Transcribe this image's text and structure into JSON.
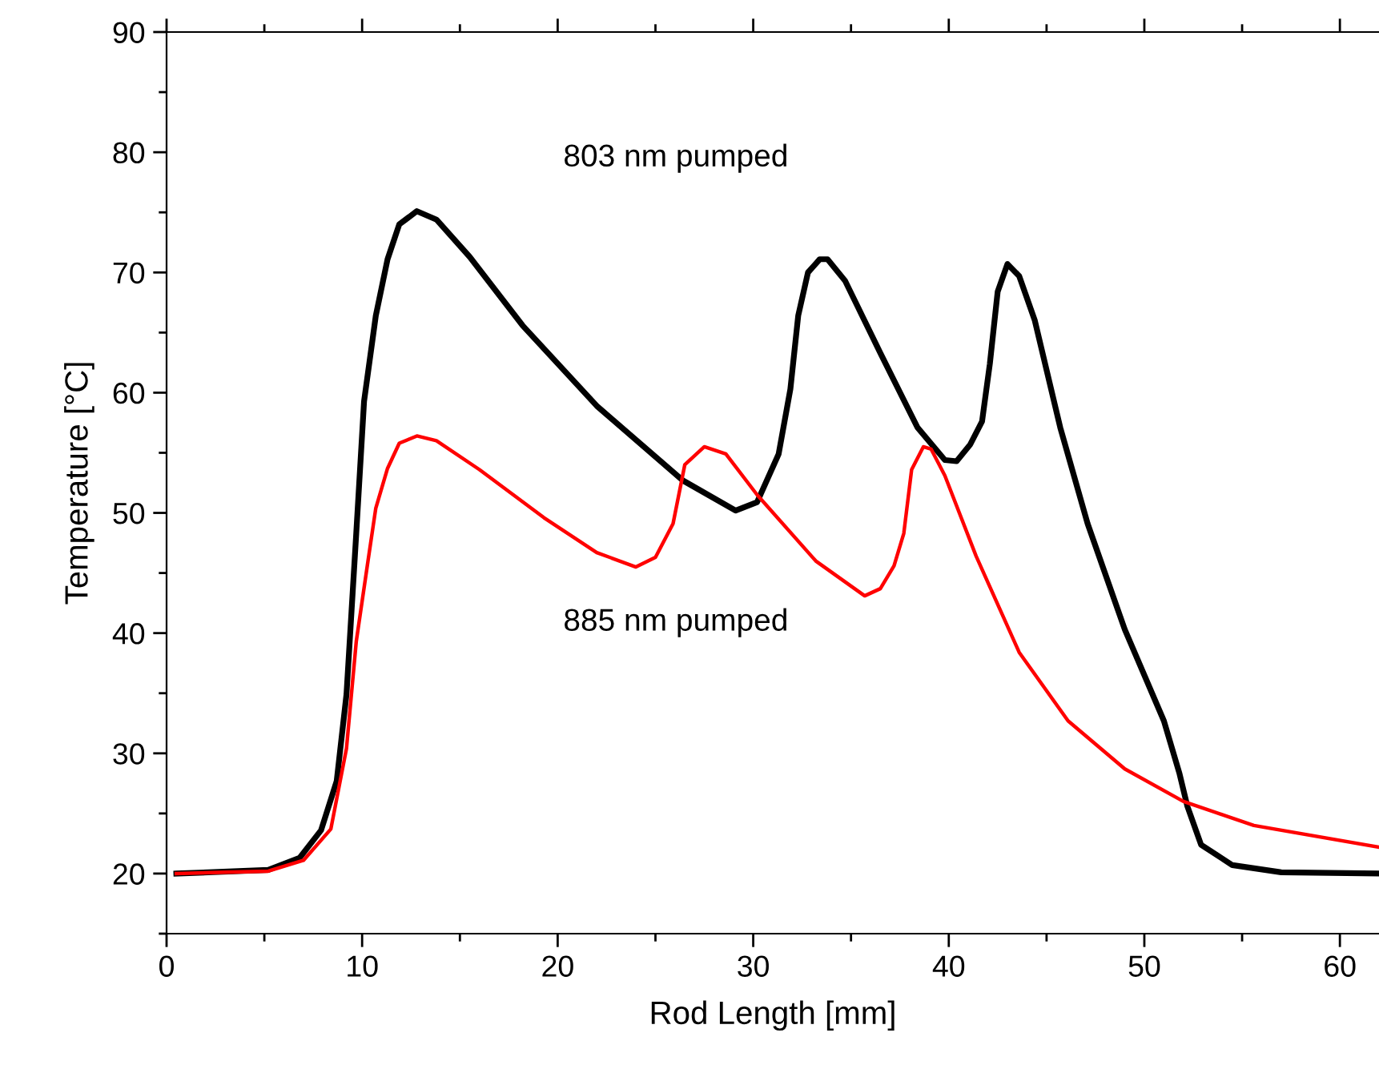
{
  "chart_data": {
    "type": "line",
    "xlabel": "Rod Length [mm]",
    "ylabel": "Temperature [°C]",
    "xlim": [
      0,
      62
    ],
    "ylim": [
      15,
      90
    ],
    "xticks": [
      0,
      10,
      20,
      30,
      40,
      50,
      60
    ],
    "yticks": [
      20,
      30,
      40,
      50,
      60,
      70,
      80,
      90
    ],
    "grid": false,
    "legend": false,
    "series": [
      {
        "name": "803 nm pumped",
        "color": "#000000",
        "x": [
          0.5,
          5.2,
          6.8,
          7.9,
          8.7,
          9.2,
          9.7,
          10.1,
          10.7,
          11.3,
          11.9,
          12.8,
          13.8,
          15.5,
          18.2,
          22.0,
          26.4,
          29.1,
          30.2,
          31.3,
          31.9,
          32.3,
          32.8,
          33.4,
          33.8,
          34.7,
          36.5,
          38.4,
          39.8,
          40.4,
          41.1,
          41.7,
          42.1,
          42.5,
          43.0,
          43.6,
          44.4,
          45.7,
          47.1,
          49.0,
          51.0,
          51.8,
          52.2,
          52.9,
          54.5,
          57.0,
          62.0
        ],
        "values": [
          20,
          20.3,
          21.3,
          23.6,
          27.7,
          34.9,
          48.3,
          59.3,
          66.4,
          71.1,
          74,
          75.1,
          74.4,
          71.3,
          65.6,
          58.9,
          52.7,
          50.2,
          50.9,
          54.9,
          60.3,
          66.4,
          70,
          71.1,
          71.1,
          69.3,
          63.3,
          57.1,
          54.4,
          54.3,
          55.7,
          57.6,
          62.4,
          68.4,
          70.7,
          69.7,
          66,
          57.1,
          49.1,
          40.3,
          32.7,
          28.3,
          25.6,
          22.4,
          20.7,
          20.1,
          20
        ]
      },
      {
        "name": "885 nm pumped",
        "color": "#ff0000",
        "x": [
          0.5,
          5.2,
          7.0,
          8.4,
          9.2,
          9.7,
          10.3,
          10.7,
          11.3,
          11.9,
          12.8,
          13.8,
          16.0,
          19.3,
          22.0,
          24.0,
          25.0,
          25.9,
          26.5,
          27.5,
          28.6,
          30.2,
          33.2,
          35.7,
          36.5,
          37.2,
          37.7,
          38.1,
          38.7,
          39.1,
          39.8,
          41.4,
          43.6,
          46.1,
          49.0,
          52.0,
          55.6,
          62.0
        ],
        "values": [
          20,
          20.2,
          21.1,
          23.7,
          30.4,
          39.3,
          46,
          50.4,
          53.7,
          55.8,
          56.4,
          56,
          53.6,
          49.6,
          46.7,
          45.5,
          46.3,
          49.1,
          54,
          55.5,
          54.9,
          51.5,
          46,
          43.1,
          43.7,
          45.6,
          48.3,
          53.6,
          55.5,
          55.3,
          53.1,
          46.4,
          38.4,
          32.7,
          28.7,
          26,
          24,
          22.2
        ]
      }
    ]
  }
}
